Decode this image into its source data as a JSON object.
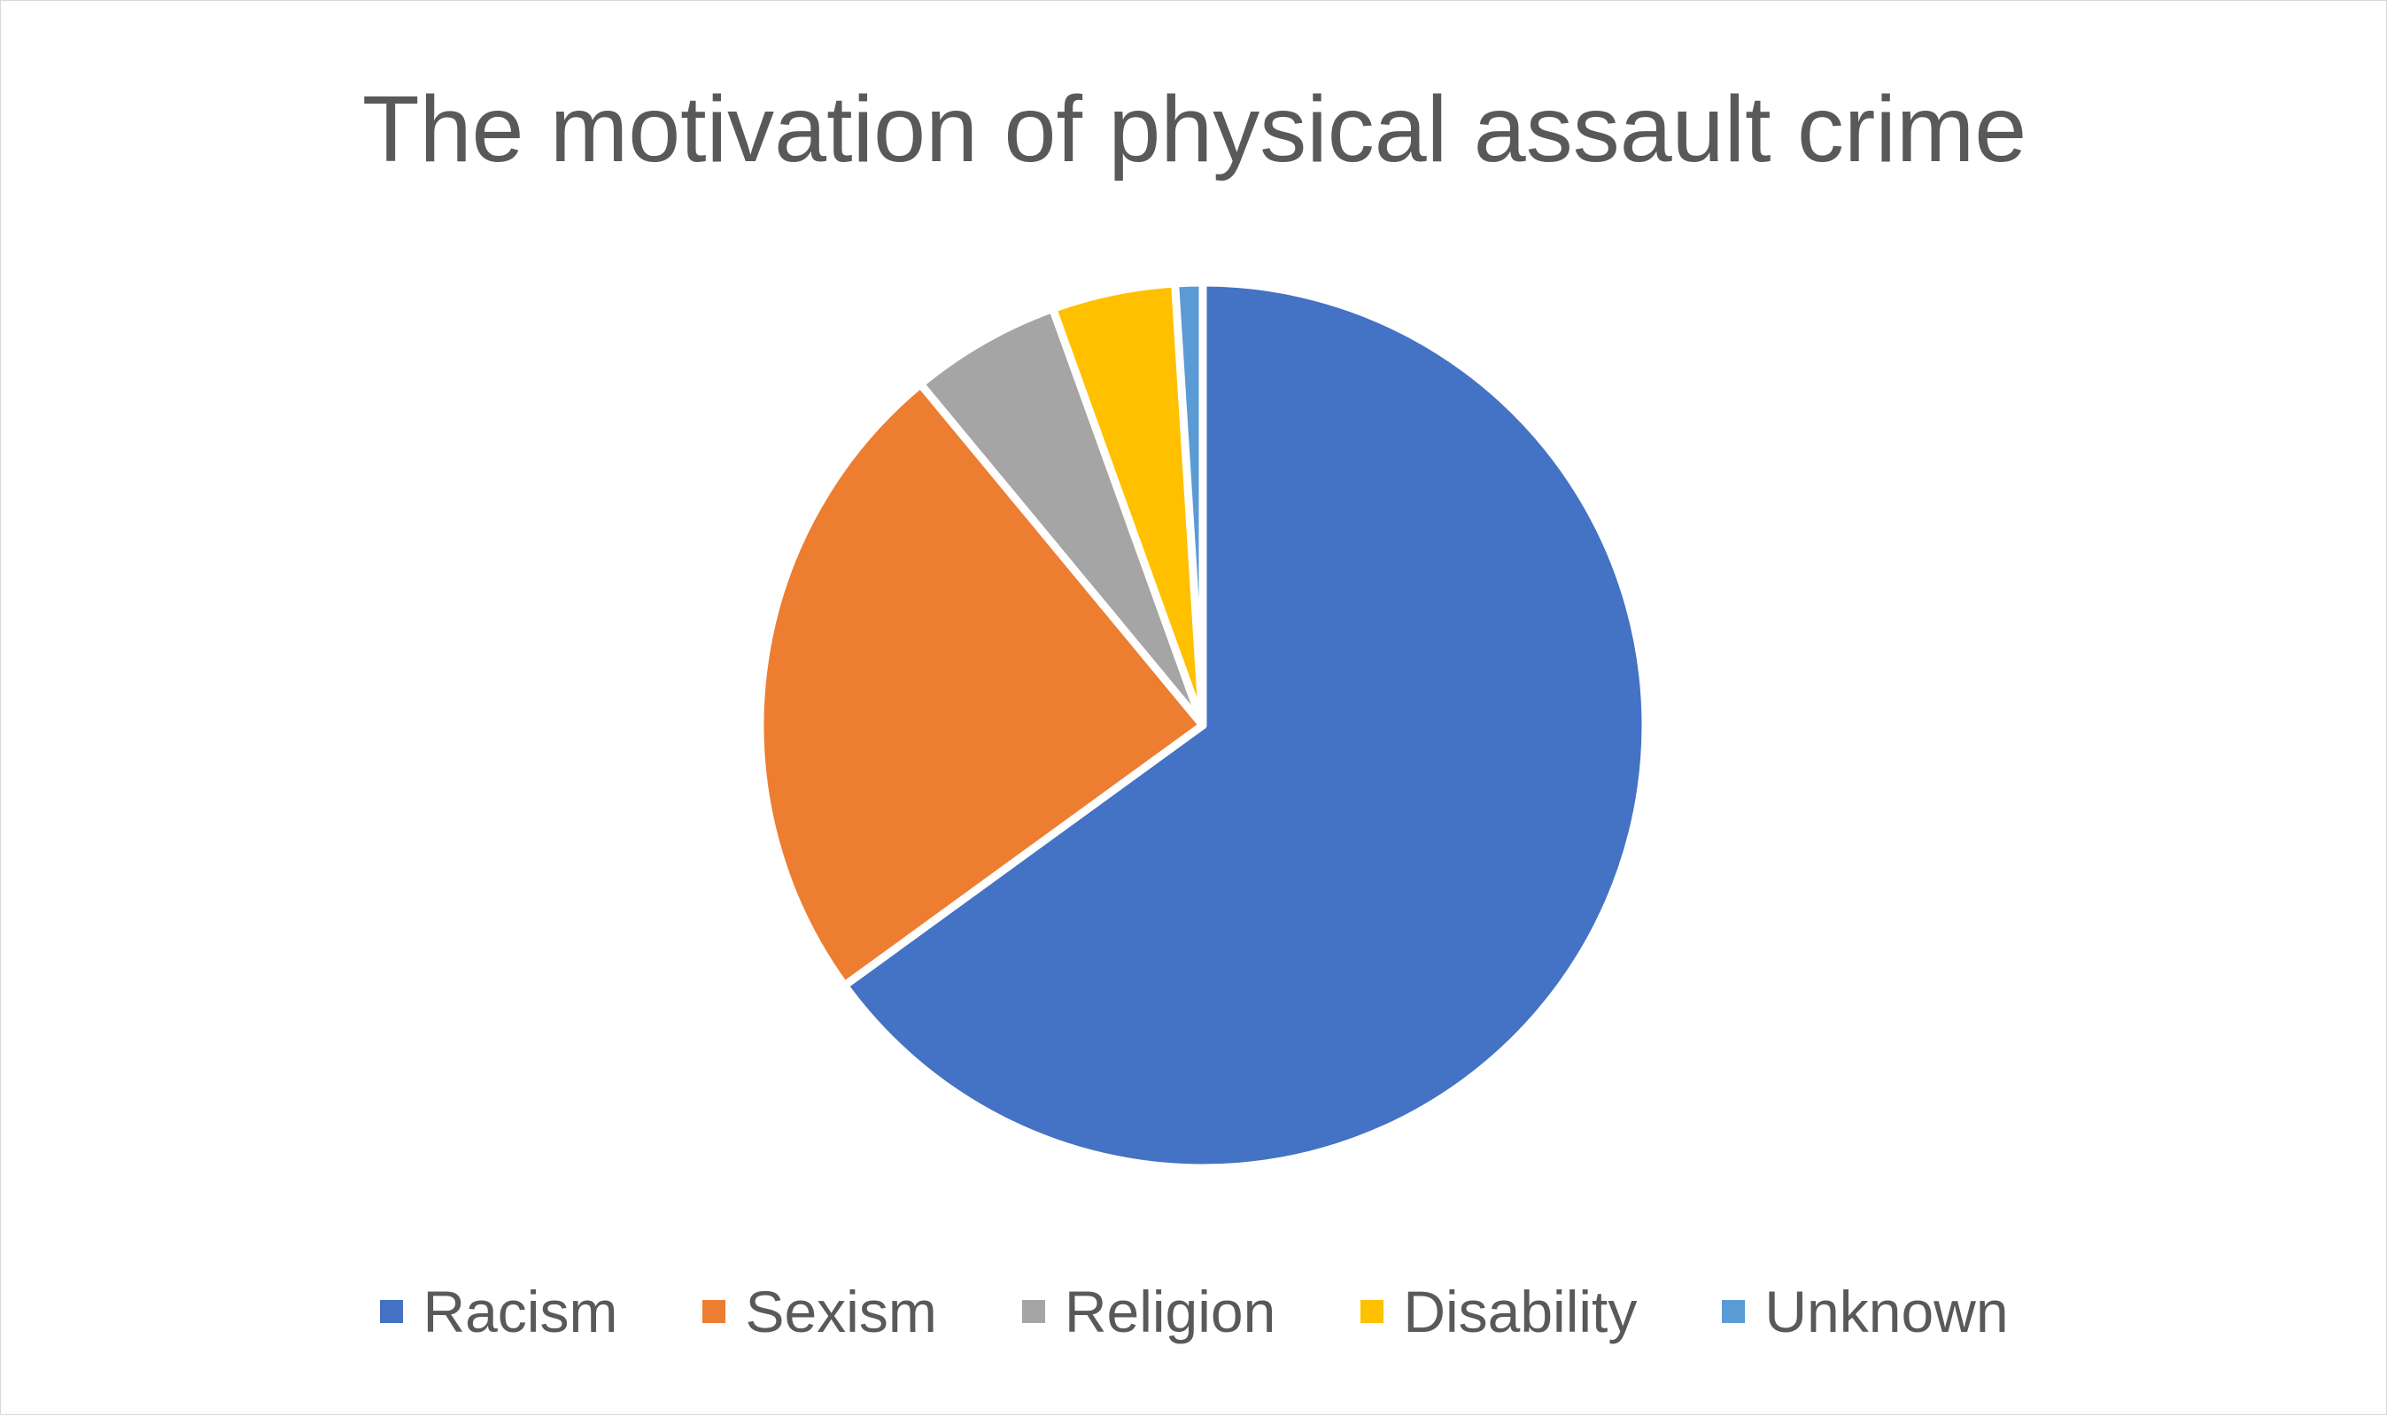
{
  "chart_data": {
    "type": "pie",
    "title": "The motivation of physical assault crime",
    "categories": [
      "Racism",
      "Sexism",
      "Religion",
      "Disability",
      "Unknown"
    ],
    "values": [
      65,
      24,
      5.5,
      4.5,
      1
    ],
    "colors": [
      "#4472C4",
      "#ED7D31",
      "#A5A5A5",
      "#FFC000",
      "#5B9BD5"
    ],
    "legend_position": "bottom",
    "start_angle_deg": 0,
    "direction": "clockwise"
  }
}
